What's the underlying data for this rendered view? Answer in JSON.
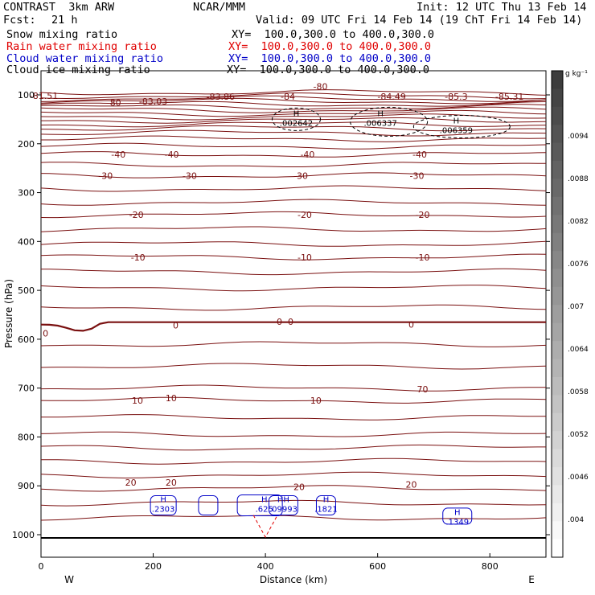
{
  "header": {
    "model": "CONTRAST  3km ARW",
    "org": "NCAR/MMM",
    "init": "Init: 12 UTC Thu 13 Feb 14",
    "fcst_label": "Fcst:",
    "fcst_value": "21 h",
    "valid": "Valid: 09 UTC Fri 14 Feb 14 (19 ChT Fri 14 Feb 14)"
  },
  "legend": [
    {
      "name": "Snow mixing ratio",
      "xy": "XY=  100.0,300.0 to 400.0,300.0",
      "color": "#000000"
    },
    {
      "name": "Rain water mixing ratio",
      "xy": "XY=  100.0,300.0 to 400.0,300.0",
      "color": "#e00000"
    },
    {
      "name": "Cloud water mixing ratio",
      "xy": "XY=  100.0,300.0 to 400.0,300.0",
      "color": "#0000c8"
    },
    {
      "name": "Cloud ice mixing ratio",
      "xy": "XY=  100.0,300.0 to 400.0,300.0",
      "color": "#000000"
    }
  ],
  "chart_data": {
    "type": "contour",
    "xlabel": "Distance (km)",
    "ylabel": "Pressure (hPa)",
    "xlim": [
      0,
      900
    ],
    "ylim": [
      1050,
      70
    ],
    "x_ticks": [
      0,
      200,
      400,
      600,
      800
    ],
    "y_ticks": [
      100,
      200,
      300,
      400,
      500,
      600,
      700,
      800,
      900,
      1000
    ],
    "x_end_labels": {
      "left": "W",
      "right": "E"
    },
    "contour_color": "#7a1010",
    "temperature_labels": [
      {
        "x": 5,
        "p": 102,
        "text": "-81.51"
      },
      {
        "x": 130,
        "p": 116,
        "text": "-80"
      },
      {
        "x": 200,
        "p": 113,
        "text": "-83.03"
      },
      {
        "x": 320,
        "p": 103,
        "text": "-83.86"
      },
      {
        "x": 440,
        "p": 103,
        "text": "-84"
      },
      {
        "x": 498,
        "p": 83,
        "text": "-80"
      },
      {
        "x": 625,
        "p": 103,
        "text": "-84.49"
      },
      {
        "x": 740,
        "p": 103,
        "text": "-85.3"
      },
      {
        "x": 835,
        "p": 103,
        "text": "-85.31"
      },
      {
        "x": 138,
        "p": 222,
        "text": "-40"
      },
      {
        "x": 233,
        "p": 222,
        "text": "-40"
      },
      {
        "x": 475,
        "p": 222,
        "text": "-40"
      },
      {
        "x": 675,
        "p": 222,
        "text": "-40"
      },
      {
        "x": 115,
        "p": 265,
        "text": "-30"
      },
      {
        "x": 265,
        "p": 265,
        "text": "-30"
      },
      {
        "x": 463,
        "p": 265,
        "text": "-30"
      },
      {
        "x": 670,
        "p": 265,
        "text": "-30"
      },
      {
        "x": 170,
        "p": 345,
        "text": "-20"
      },
      {
        "x": 470,
        "p": 345,
        "text": "-20"
      },
      {
        "x": 680,
        "p": 345,
        "text": "-20"
      },
      {
        "x": 173,
        "p": 432,
        "text": "-10"
      },
      {
        "x": 470,
        "p": 432,
        "text": "-10"
      },
      {
        "x": 680,
        "p": 432,
        "text": "-10"
      },
      {
        "x": 8,
        "p": 588,
        "text": "0"
      },
      {
        "x": 240,
        "p": 571,
        "text": "0"
      },
      {
        "x": 425,
        "p": 564,
        "text": "0"
      },
      {
        "x": 445,
        "p": 564,
        "text": "0"
      },
      {
        "x": 660,
        "p": 570,
        "text": "0"
      },
      {
        "x": 172,
        "p": 725,
        "text": "10"
      },
      {
        "x": 232,
        "p": 720,
        "text": "10"
      },
      {
        "x": 490,
        "p": 725,
        "text": "10"
      },
      {
        "x": 680,
        "p": 702,
        "text": "70"
      },
      {
        "x": 160,
        "p": 893,
        "text": "20"
      },
      {
        "x": 232,
        "p": 893,
        "text": "20"
      },
      {
        "x": 460,
        "p": 902,
        "text": "20"
      },
      {
        "x": 660,
        "p": 897,
        "text": "20"
      }
    ],
    "highs": [
      {
        "x": 455,
        "p": 150,
        "label": "H",
        "value": ".002642",
        "color": "#000000"
      },
      {
        "x": 605,
        "p": 150,
        "label": "H",
        "value": ".006337",
        "color": "#000000"
      },
      {
        "x": 740,
        "p": 165,
        "label": "H",
        "value": ".006359",
        "color": "#000000"
      },
      {
        "x": 218,
        "p": 940,
        "label": "H",
        "value": ".2303",
        "color": "#0000c8"
      },
      {
        "x": 398,
        "p": 940,
        "label": "H",
        "value": ".625",
        "color": "#0000c8"
      },
      {
        "x": 432,
        "p": 940,
        "label": "HH",
        "value": ".09993",
        "color": "#0000c8"
      },
      {
        "x": 508,
        "p": 940,
        "label": "H",
        "value": ".1821",
        "color": "#0000c8"
      },
      {
        "x": 742,
        "p": 966,
        "label": "H",
        "value": ".1349",
        "color": "#0000c8"
      }
    ],
    "colorbar": {
      "unit": "g kg⁻¹",
      "ticks": [
        ".0094",
        ".0088",
        ".0082",
        ".0076",
        ".007",
        ".0064",
        ".0058",
        ".0052",
        ".0046",
        ".004"
      ]
    }
  }
}
